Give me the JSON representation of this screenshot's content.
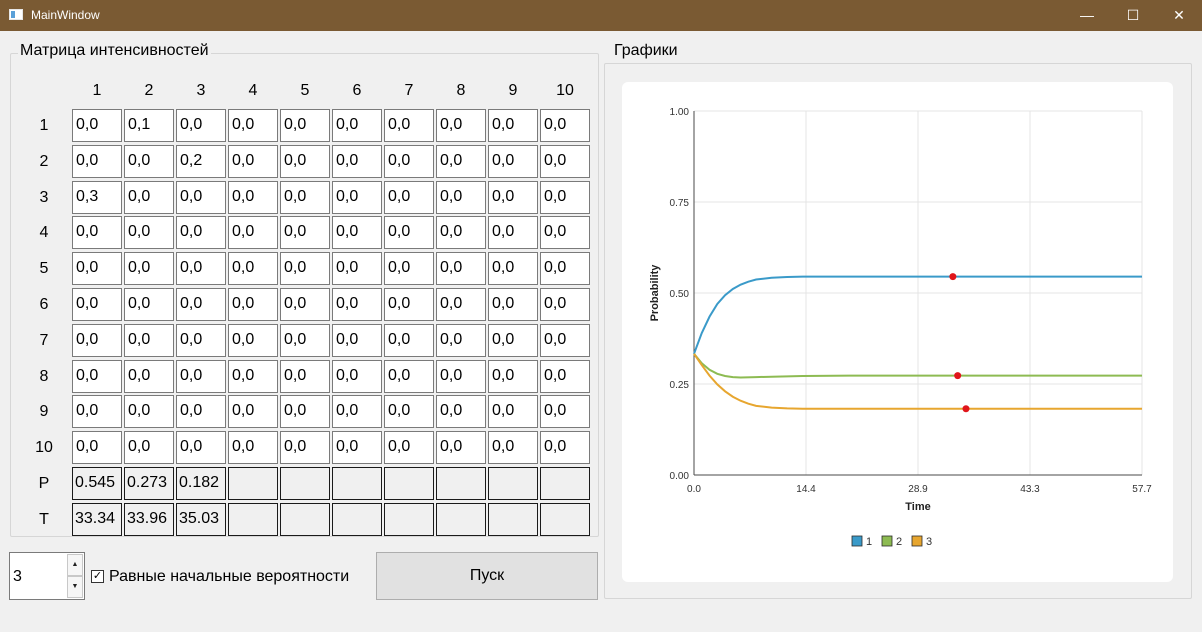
{
  "window": {
    "title": "MainWindow",
    "minimize": "—",
    "maximize": "☐",
    "close": "✕"
  },
  "matrix_group": {
    "title": "Матрица интенсивностей",
    "column_headers": [
      "1",
      "2",
      "3",
      "4",
      "5",
      "6",
      "7",
      "8",
      "9",
      "10"
    ],
    "row_headers": [
      "1",
      "2",
      "3",
      "4",
      "5",
      "6",
      "7",
      "8",
      "9",
      "10"
    ],
    "rows": [
      [
        "0,0",
        "0,1",
        "0,0",
        "0,0",
        "0,0",
        "0,0",
        "0,0",
        "0,0",
        "0,0",
        "0,0"
      ],
      [
        "0,0",
        "0,0",
        "0,2",
        "0,0",
        "0,0",
        "0,0",
        "0,0",
        "0,0",
        "0,0",
        "0,0"
      ],
      [
        "0,3",
        "0,0",
        "0,0",
        "0,0",
        "0,0",
        "0,0",
        "0,0",
        "0,0",
        "0,0",
        "0,0"
      ],
      [
        "0,0",
        "0,0",
        "0,0",
        "0,0",
        "0,0",
        "0,0",
        "0,0",
        "0,0",
        "0,0",
        "0,0"
      ],
      [
        "0,0",
        "0,0",
        "0,0",
        "0,0",
        "0,0",
        "0,0",
        "0,0",
        "0,0",
        "0,0",
        "0,0"
      ],
      [
        "0,0",
        "0,0",
        "0,0",
        "0,0",
        "0,0",
        "0,0",
        "0,0",
        "0,0",
        "0,0",
        "0,0"
      ],
      [
        "0,0",
        "0,0",
        "0,0",
        "0,0",
        "0,0",
        "0,0",
        "0,0",
        "0,0",
        "0,0",
        "0,0"
      ],
      [
        "0,0",
        "0,0",
        "0,0",
        "0,0",
        "0,0",
        "0,0",
        "0,0",
        "0,0",
        "0,0",
        "0,0"
      ],
      [
        "0,0",
        "0,0",
        "0,0",
        "0,0",
        "0,0",
        "0,0",
        "0,0",
        "0,0",
        "0,0",
        "0,0"
      ],
      [
        "0,0",
        "0,0",
        "0,0",
        "0,0",
        "0,0",
        "0,0",
        "0,0",
        "0,0",
        "0,0",
        "0,0"
      ]
    ],
    "p_label": "P",
    "p_values": [
      "0.545",
      "0.273",
      "0.182",
      "",
      "",
      "",
      "",
      "",
      "",
      ""
    ],
    "t_label": "T",
    "t_values": [
      "33.34",
      "33.96",
      "35.03",
      "",
      "",
      "",
      "",
      "",
      "",
      ""
    ]
  },
  "controls": {
    "state_count": "3",
    "spin_up": "▲",
    "spin_down": "▼",
    "equal_prob_checked": true,
    "equal_prob_check_glyph": "✓",
    "equal_prob_label": "Равные начальные вероятности",
    "run_label": "Пуск"
  },
  "charts_group": {
    "title": "Графики"
  },
  "chart_data": {
    "type": "line",
    "xlabel": "Time",
    "ylabel": "Probability",
    "xlim": [
      0,
      57.7
    ],
    "ylim": [
      0,
      1
    ],
    "x_ticks": [
      "0.0",
      "14.4",
      "28.9",
      "43.3",
      "57.7"
    ],
    "y_ticks": [
      "0.00",
      "0.25",
      "0.50",
      "0.75",
      "1.00"
    ],
    "grid": true,
    "legend_placement": "bottom",
    "series": [
      {
        "name": "1",
        "color": "#3a9ac9",
        "x": [
          0,
          1,
          2,
          3,
          4,
          5,
          6,
          7,
          8,
          10,
          12,
          14,
          20,
          30,
          40,
          57.7
        ],
        "values": [
          0.333,
          0.39,
          0.435,
          0.47,
          0.494,
          0.511,
          0.523,
          0.531,
          0.537,
          0.542,
          0.544,
          0.545,
          0.545,
          0.545,
          0.545,
          0.545
        ],
        "marker": {
          "x": 33.34,
          "y": 0.545
        }
      },
      {
        "name": "2",
        "color": "#8dbb52",
        "x": [
          0,
          1,
          2,
          3,
          4,
          5,
          6,
          8,
          10,
          14,
          20,
          30,
          40,
          57.7
        ],
        "values": [
          0.333,
          0.307,
          0.289,
          0.278,
          0.272,
          0.269,
          0.268,
          0.269,
          0.27,
          0.272,
          0.273,
          0.273,
          0.273,
          0.273
        ],
        "marker": {
          "x": 33.96,
          "y": 0.273
        }
      },
      {
        "name": "3",
        "color": "#e7a62f",
        "x": [
          0,
          1,
          2,
          3,
          4,
          5,
          6,
          7,
          8,
          10,
          12,
          14,
          20,
          30,
          40,
          57.7
        ],
        "values": [
          0.333,
          0.302,
          0.273,
          0.249,
          0.23,
          0.215,
          0.204,
          0.196,
          0.19,
          0.185,
          0.183,
          0.182,
          0.182,
          0.182,
          0.182,
          0.182
        ],
        "marker": {
          "x": 35.03,
          "y": 0.182
        }
      }
    ]
  }
}
